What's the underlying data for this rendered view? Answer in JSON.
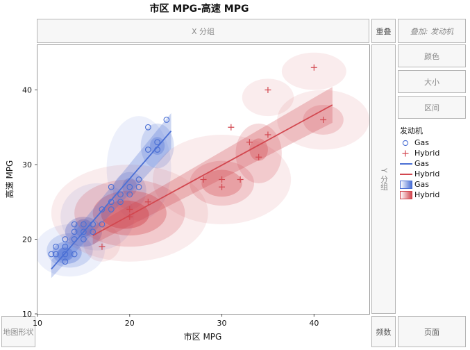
{
  "title": "市区 MPG-高速 MPG",
  "drop_zones": {
    "x_group": "X 分组",
    "overlay": "重叠",
    "overlay_var": "叠加: 发动机",
    "color": "颜色",
    "size": "大小",
    "interval": "区间",
    "y_group": "Y 分组",
    "map_shape": "地图形状",
    "freq": "频数",
    "page": "页面"
  },
  "legend": {
    "title": "发动机",
    "items": [
      {
        "label": "Gas",
        "kind": "marker-circle",
        "color": "#4a6fd4"
      },
      {
        "label": "Hybrid",
        "kind": "marker-plus",
        "color": "#d2474f"
      },
      {
        "label": "Gas",
        "kind": "line",
        "color": "#4a6fd4"
      },
      {
        "label": "Hybrid",
        "kind": "line",
        "color": "#d2474f"
      },
      {
        "label": "Gas",
        "kind": "gradient",
        "color": "#4a6fd4"
      },
      {
        "label": "Hybrid",
        "kind": "gradient",
        "color": "#d2474f"
      }
    ]
  },
  "chart_data": {
    "type": "scatter",
    "title": "市区 MPG-高速 MPG",
    "xlabel": "市区 MPG",
    "ylabel": "高速 MPG",
    "xlim": [
      10,
      46
    ],
    "ylim": [
      10,
      46
    ],
    "xticks": [
      10,
      20,
      30,
      40
    ],
    "yticks": [
      10,
      20,
      30,
      40
    ],
    "series": [
      {
        "name": "Gas",
        "color": "#4a6fd4",
        "marker": "circle",
        "points": [
          [
            11.5,
            18
          ],
          [
            12,
            18
          ],
          [
            12,
            19
          ],
          [
            13,
            17
          ],
          [
            13,
            18
          ],
          [
            13,
            19
          ],
          [
            13,
            20
          ],
          [
            14,
            18
          ],
          [
            14,
            20
          ],
          [
            14,
            21
          ],
          [
            14,
            22
          ],
          [
            15,
            20
          ],
          [
            15,
            21
          ],
          [
            15,
            22
          ],
          [
            16,
            21
          ],
          [
            16,
            22
          ],
          [
            17,
            22
          ],
          [
            17,
            24
          ],
          [
            18,
            24
          ],
          [
            18,
            25
          ],
          [
            18,
            27
          ],
          [
            19,
            25
          ],
          [
            19,
            26
          ],
          [
            20,
            26
          ],
          [
            20,
            27
          ],
          [
            21,
            27
          ],
          [
            21,
            28
          ],
          [
            22,
            32
          ],
          [
            22,
            35
          ],
          [
            23,
            32
          ],
          [
            23,
            33
          ],
          [
            24,
            36
          ]
        ],
        "fit": {
          "x": [
            11.5,
            24.5
          ],
          "y": [
            16.0,
            34.5
          ]
        }
      },
      {
        "name": "Hybrid",
        "color": "#d2474f",
        "marker": "plus",
        "points": [
          [
            17,
            19
          ],
          [
            20,
            23
          ],
          [
            20,
            24
          ],
          [
            22,
            25
          ],
          [
            28,
            28
          ],
          [
            30,
            27
          ],
          [
            30,
            28
          ],
          [
            31,
            35
          ],
          [
            32,
            28
          ],
          [
            33,
            33
          ],
          [
            34,
            31
          ],
          [
            35,
            34
          ],
          [
            35,
            40
          ],
          [
            40,
            43
          ],
          [
            41,
            36
          ]
        ],
        "fit": {
          "x": [
            16,
            42
          ],
          "y": [
            20.5,
            38
          ]
        }
      }
    ],
    "density_regions": {
      "Gas": [
        {
          "cx": 13.5,
          "cy": 18.5,
          "rx": 2.5,
          "ry": 2.3,
          "level": 1
        },
        {
          "cx": 13.2,
          "cy": 18.2,
          "rx": 1.6,
          "ry": 1.5,
          "level": 2
        },
        {
          "cx": 13.0,
          "cy": 18.0,
          "rx": 0.9,
          "ry": 0.9,
          "level": 3
        },
        {
          "cx": 15.0,
          "cy": 21.0,
          "rx": 2.0,
          "ry": 2.0,
          "level": 2
        },
        {
          "cx": 15.0,
          "cy": 21.5,
          "rx": 1.0,
          "ry": 1.2,
          "level": 3
        },
        {
          "cx": 20.0,
          "cy": 26.5,
          "rx": 1.8,
          "ry": 2.5,
          "level": 1
        },
        {
          "cx": 20.0,
          "cy": 27.0,
          "rx": 0.8,
          "ry": 1.2,
          "level": 2
        },
        {
          "cx": 23.0,
          "cy": 32.5,
          "rx": 1.8,
          "ry": 3.0,
          "level": 1
        },
        {
          "cx": 23.0,
          "cy": 32.5,
          "rx": 0.8,
          "ry": 1.2,
          "level": 2
        },
        {
          "cx": 16.5,
          "cy": 23.0,
          "rx": 4.0,
          "ry": 4.5,
          "level": 0
        },
        {
          "cx": 21.0,
          "cy": 29.5,
          "rx": 3.5,
          "ry": 7.0,
          "level": 0
        },
        {
          "cx": 13.5,
          "cy": 18.5,
          "rx": 3.8,
          "ry": 3.5,
          "level": 0
        }
      ],
      "Hybrid": [
        {
          "cx": 20,
          "cy": 23.5,
          "rx": 8.5,
          "ry": 6.5,
          "level": 0
        },
        {
          "cx": 20,
          "cy": 23.5,
          "rx": 6.0,
          "ry": 4.5,
          "level": 1
        },
        {
          "cx": 20,
          "cy": 23.5,
          "rx": 4.0,
          "ry": 3.0,
          "level": 2
        },
        {
          "cx": 19.5,
          "cy": 23.3,
          "rx": 2.6,
          "ry": 1.9,
          "level": 3
        },
        {
          "cx": 30,
          "cy": 28,
          "rx": 7.5,
          "ry": 6.0,
          "level": 0
        },
        {
          "cx": 30,
          "cy": 27.5,
          "rx": 3.5,
          "ry": 3.0,
          "level": 1
        },
        {
          "cx": 30,
          "cy": 27.5,
          "rx": 2.2,
          "ry": 1.8,
          "level": 2
        },
        {
          "cx": 34,
          "cy": 31.5,
          "rx": 2.5,
          "ry": 4.0,
          "level": 1
        },
        {
          "cx": 34,
          "cy": 32,
          "rx": 1.0,
          "ry": 1.5,
          "level": 2
        },
        {
          "cx": 41,
          "cy": 36,
          "rx": 5.0,
          "ry": 4.0,
          "level": 0
        },
        {
          "cx": 41,
          "cy": 36,
          "rx": 2.2,
          "ry": 2.0,
          "level": 1
        },
        {
          "cx": 40,
          "cy": 42.5,
          "rx": 3.5,
          "ry": 2.5,
          "level": 0
        },
        {
          "cx": 35,
          "cy": 39,
          "rx": 2.8,
          "ry": 2.5,
          "level": 0
        },
        {
          "cx": 17,
          "cy": 19.5,
          "rx": 2.0,
          "ry": 2.5,
          "level": 0
        }
      ]
    }
  }
}
